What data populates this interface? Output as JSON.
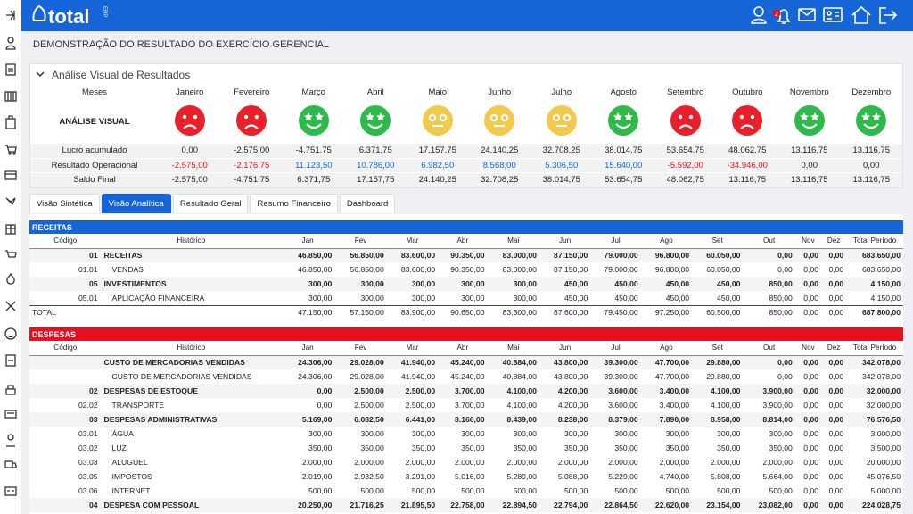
{
  "header": {
    "logo": "total",
    "logo_suffix": "ERP",
    "notifications": 2
  },
  "page_title": "DEMONSTRAÇÃO DO RESULTADO DO EXERCÍCIO GERENCIAL",
  "analysis": {
    "title": "Análise Visual de Resultados",
    "months_label": "Meses",
    "months": [
      "Janeiro",
      "Fevereiro",
      "Março",
      "Abril",
      "Maio",
      "Junho",
      "Julho",
      "Agosto",
      "Setembro",
      "Outubro",
      "Novembro",
      "Dezembro"
    ],
    "visual_label": "ANÁLISE VISUAL",
    "faces": [
      "sad",
      "sad",
      "happy",
      "happy",
      "neutral",
      "neutral",
      "neutral",
      "happy",
      "sad",
      "sad",
      "happy",
      "happy"
    ],
    "rows": [
      {
        "label": "Lucro acumulado",
        "values": [
          "0,00",
          "-2.575,00",
          "-4.751,75",
          "6.371,75",
          "17.157,75",
          "24.140,25",
          "32.708,25",
          "38.014,75",
          "53.654,75",
          "48.062,75",
          "13.116,75",
          "13.116,75"
        ]
      },
      {
        "label": "Resultado Operacional",
        "colored": true,
        "values": [
          "-2.575,00",
          "-2.176,75",
          "11.123,50",
          "10.786,00",
          "6.982,50",
          "8.568,00",
          "5.306,50",
          "15.640,00",
          "-5.592,00",
          "-34.946,00",
          "0,00",
          "0,00"
        ]
      },
      {
        "label": "Saldo Final",
        "values": [
          "-2.575,00",
          "-4.751,75",
          "6.371,75",
          "17.157,75",
          "24.140,25",
          "32.708,25",
          "38.014,75",
          "53.654,75",
          "48.062,75",
          "13.116,75",
          "13.116,75",
          "13.116,75"
        ]
      }
    ]
  },
  "tabs": {
    "items": [
      "Visão Sintética",
      "Visão Analítica",
      "Resultado Geral",
      "Resumo Financeiro",
      "Dashboard"
    ],
    "active": 1
  },
  "receitas": {
    "title": "RECEITAS",
    "color": "#1565d8",
    "columns": [
      "Código",
      "Histórico",
      "Jan",
      "Fev",
      "Mar",
      "Abr",
      "Mai",
      "Jun",
      "Jul",
      "Ago",
      "Set",
      "Out",
      "Nov",
      "Dez",
      "Total Período"
    ],
    "rows": [
      {
        "code": "01",
        "name": "RECEITAS",
        "bold": true,
        "values": [
          "46.850,00",
          "56.850,00",
          "83.600,00",
          "90.350,00",
          "83.000,00",
          "87.150,00",
          "79.000,00",
          "96.800,00",
          "60.050,00",
          "0,00",
          "0,00",
          "0,00",
          "683.650,00"
        ]
      },
      {
        "code": "01.01",
        "name": "VENDAS",
        "values": [
          "46.850,00",
          "56.850,00",
          "83.600,00",
          "90.350,00",
          "83.000,00",
          "87.150,00",
          "79.000,00",
          "96.800,00",
          "60.050,00",
          "0,00",
          "0,00",
          "0,00",
          "683.650,00"
        ]
      },
      {
        "code": "05",
        "name": "INVESTIMENTOS",
        "bold": true,
        "values": [
          "300,00",
          "300,00",
          "300,00",
          "300,00",
          "300,00",
          "450,00",
          "450,00",
          "450,00",
          "450,00",
          "850,00",
          "0,00",
          "0,00",
          "4.150,00"
        ]
      },
      {
        "code": "05.01",
        "name": "APLICAÇÃO FINANCEIRA",
        "values": [
          "300,00",
          "300,00",
          "300,00",
          "300,00",
          "300,00",
          "450,00",
          "450,00",
          "450,00",
          "450,00",
          "850,00",
          "0,00",
          "0,00",
          "4.150,00"
        ]
      }
    ],
    "total": {
      "label": "TOTAL",
      "values": [
        "47.150,00",
        "57.150,00",
        "83.900,00",
        "90.650,00",
        "83.300,00",
        "87.600,00",
        "79.450,00",
        "97.250,00",
        "60.500,00",
        "850,00",
        "0,00",
        "0,00",
        "687.800,00"
      ]
    }
  },
  "despesas": {
    "title": "DESPESAS",
    "color": "#e8101e",
    "columns": [
      "Código",
      "Histórico",
      "Jan",
      "Fev",
      "Mar",
      "Abr",
      "Mai",
      "Jun",
      "Jul",
      "Ago",
      "Set",
      "Out",
      "Nov",
      "Dez",
      "Total Período"
    ],
    "rows": [
      {
        "name": "CUSTO DE MERCADORIAS VENDIDAS",
        "bold": true,
        "values": [
          "24.306,00",
          "29.028,00",
          "41.940,00",
          "45.240,00",
          "40.884,00",
          "43.800,00",
          "39.300,00",
          "47.700,00",
          "29.880,00",
          "0,00",
          "0,00",
          "0,00",
          "342.078,00"
        ]
      },
      {
        "name": "CUSTO DE MERCADORIAS VENDIDAS",
        "values": [
          "24.306,00",
          "29.028,00",
          "41.940,00",
          "45.240,00",
          "40.884,00",
          "43.800,00",
          "39.300,00",
          "47.700,00",
          "29.880,00",
          "0,00",
          "0,00",
          "0,00",
          "342.078,00"
        ]
      },
      {
        "code": "02",
        "name": "DESPESAS DE ESTOQUE",
        "bold": true,
        "values": [
          "0,00",
          "2.500,00",
          "2.500,00",
          "3.700,00",
          "4.100,00",
          "4.200,00",
          "3.600,00",
          "3.400,00",
          "4.100,00",
          "3.900,00",
          "0,00",
          "0,00",
          "32.000,00"
        ]
      },
      {
        "code": "02.02",
        "name": "TRANSPORTE",
        "values": [
          "0,00",
          "2.500,00",
          "2.500,00",
          "3.700,00",
          "4.100,00",
          "4.200,00",
          "3.600,00",
          "3.400,00",
          "4.100,00",
          "3.900,00",
          "0,00",
          "0,00",
          "32.000,00"
        ]
      },
      {
        "code": "03",
        "name": "DESPESAS ADMINISTRATIVAS",
        "bold": true,
        "values": [
          "5.169,00",
          "6.082,50",
          "6.441,00",
          "8.166,00",
          "8.439,00",
          "8.238,00",
          "8.379,00",
          "7.890,00",
          "8.958,00",
          "8.814,00",
          "0,00",
          "0,00",
          "76.576,50"
        ]
      },
      {
        "code": "03.01",
        "name": "ÁGUA",
        "values": [
          "300,00",
          "300,00",
          "300,00",
          "300,00",
          "300,00",
          "300,00",
          "300,00",
          "300,00",
          "300,00",
          "300,00",
          "0,00",
          "0,00",
          "3.000,00"
        ]
      },
      {
        "code": "03.02",
        "name": "LUZ",
        "values": [
          "350,00",
          "350,00",
          "350,00",
          "350,00",
          "350,00",
          "350,00",
          "350,00",
          "350,00",
          "350,00",
          "350,00",
          "0,00",
          "0,00",
          "3.500,00"
        ]
      },
      {
        "code": "03.03",
        "name": "ALUGUEL",
        "values": [
          "2.000,00",
          "2.000,00",
          "2.000,00",
          "2.000,00",
          "2.000,00",
          "2.000,00",
          "2.000,00",
          "2.000,00",
          "2.000,00",
          "2.000,00",
          "0,00",
          "0,00",
          "20.000,00"
        ]
      },
      {
        "code": "03.05",
        "name": "IMPOSTOS",
        "values": [
          "2.019,00",
          "2.932,50",
          "3.291,00",
          "5.016,00",
          "5.289,00",
          "5.088,00",
          "5.229,00",
          "4.740,00",
          "5.808,00",
          "5.664,00",
          "0,00",
          "0,00",
          "45.076,50"
        ]
      },
      {
        "code": "03.06",
        "name": "INTERNET",
        "values": [
          "500,00",
          "500,00",
          "500,00",
          "500,00",
          "500,00",
          "500,00",
          "500,00",
          "500,00",
          "500,00",
          "500,00",
          "0,00",
          "0,00",
          "5.000,00"
        ]
      },
      {
        "code": "04",
        "name": "DESPESA COM PESSOAL",
        "bold": true,
        "values": [
          "20.250,00",
          "21.716,25",
          "21.895,50",
          "22.758,00",
          "22.894,50",
          "22.794,00",
          "22.864,50",
          "22.620,00",
          "23.154,00",
          "23.082,00",
          "0,00",
          "0,00",
          "224.028,75"
        ]
      }
    ]
  }
}
